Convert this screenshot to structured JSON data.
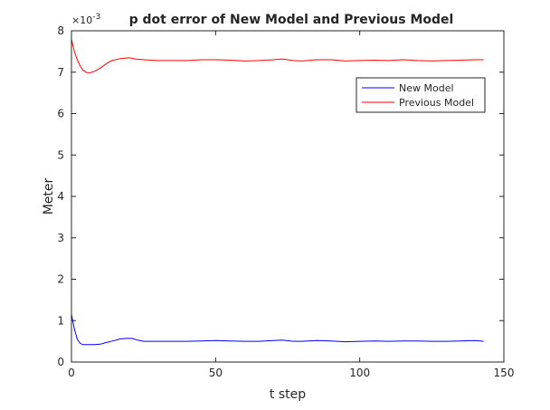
{
  "chart_data": {
    "type": "line",
    "title": "p dot error of New Model and Previous Model",
    "xlabel": "t step",
    "ylabel": "Meter",
    "exponent_base": "×10",
    "exponent_power": "-3",
    "xlim": [
      0,
      150
    ],
    "ylim": [
      0,
      8
    ],
    "x_ticks": [
      0,
      50,
      100,
      150
    ],
    "y_ticks": [
      0,
      1,
      2,
      3,
      4,
      5,
      6,
      7,
      8
    ],
    "grid": false,
    "legend_position": "top-right",
    "series": [
      {
        "name": "New Model",
        "color": "#0000ff",
        "x": [
          0,
          1,
          2,
          3,
          4,
          6,
          8,
          10,
          12,
          15,
          17,
          19,
          21,
          23,
          25,
          30,
          35,
          40,
          45,
          50,
          55,
          60,
          65,
          70,
          73,
          77,
          80,
          85,
          90,
          95,
          100,
          105,
          110,
          115,
          120,
          125,
          130,
          135,
          140,
          143
        ],
        "y": [
          1.15,
          0.8,
          0.55,
          0.45,
          0.42,
          0.42,
          0.42,
          0.43,
          0.47,
          0.52,
          0.56,
          0.57,
          0.57,
          0.53,
          0.5,
          0.5,
          0.5,
          0.5,
          0.51,
          0.52,
          0.51,
          0.5,
          0.5,
          0.52,
          0.53,
          0.5,
          0.5,
          0.52,
          0.51,
          0.49,
          0.5,
          0.51,
          0.5,
          0.51,
          0.51,
          0.5,
          0.5,
          0.51,
          0.52,
          0.5
        ]
      },
      {
        "name": "Previous Model",
        "color": "#ff0000",
        "x": [
          0,
          1,
          2,
          3,
          4,
          5,
          6,
          8,
          10,
          12,
          14,
          17,
          20,
          22,
          25,
          30,
          35,
          40,
          45,
          50,
          55,
          60,
          65,
          70,
          73,
          77,
          80,
          85,
          90,
          95,
          100,
          105,
          110,
          115,
          120,
          125,
          130,
          135,
          140,
          143
        ],
        "y": [
          7.8,
          7.5,
          7.3,
          7.15,
          7.05,
          7.0,
          6.98,
          7.02,
          7.1,
          7.2,
          7.28,
          7.33,
          7.35,
          7.32,
          7.3,
          7.28,
          7.28,
          7.28,
          7.3,
          7.3,
          7.29,
          7.27,
          7.28,
          7.3,
          7.32,
          7.28,
          7.27,
          7.3,
          7.3,
          7.27,
          7.28,
          7.29,
          7.28,
          7.3,
          7.28,
          7.27,
          7.28,
          7.29,
          7.3,
          7.3
        ]
      }
    ]
  }
}
